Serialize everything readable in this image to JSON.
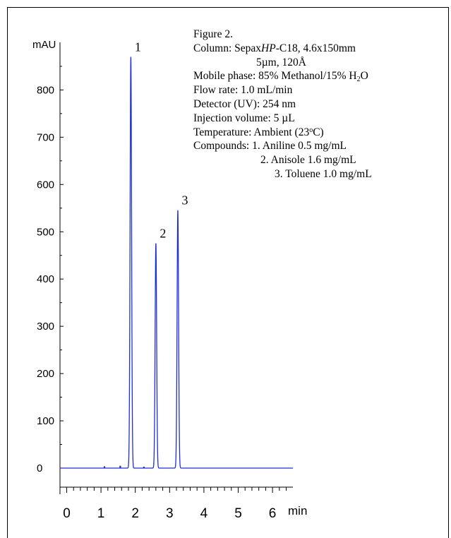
{
  "chart_data": {
    "type": "line",
    "ylabel": "mAU",
    "xlabel": "min",
    "xlim": [
      -0.2,
      6.6
    ],
    "ylim": [
      -50,
      900
    ],
    "x_ticks": [
      "0",
      "1",
      "2",
      "3",
      "4",
      "5",
      "6"
    ],
    "y_ticks": [
      "0",
      "100",
      "200",
      "300",
      "400",
      "500",
      "600",
      "700",
      "800"
    ],
    "line_color": "#1f2fd6",
    "baseline": 0,
    "peaks": [
      {
        "label": "1",
        "x": 1.87,
        "y": 870
      },
      {
        "label": "2",
        "x": 2.6,
        "y": 476
      },
      {
        "label": "3",
        "x": 3.24,
        "y": 546
      }
    ]
  },
  "caption": {
    "figure": "Figure 2.",
    "column_prefix": "Column: Sepax",
    "column_hp": "HP",
    "column_suffix": "-C18, 4.6x150mm",
    "column_line2": "5µm, 120Å",
    "mobile_prefix": "Mobile phase: 85% Methanol/15% H",
    "mobile_sub": "2",
    "mobile_suffix": "O",
    "flow": "Flow rate: 1.0 mL/min",
    "detector": "Detector (UV): 254 nm",
    "injection": "Injection volume: 5 µL",
    "temp_prefix": "Temperature: Ambient (23",
    "temp_sup": "o",
    "temp_suffix": "C)",
    "compound1": "Compounds: 1. Aniline 0.5 mg/mL",
    "compound2": "2. Anisole 1.6 mg/mL",
    "compound3": "3. Toluene 1.0 mg/mL"
  }
}
